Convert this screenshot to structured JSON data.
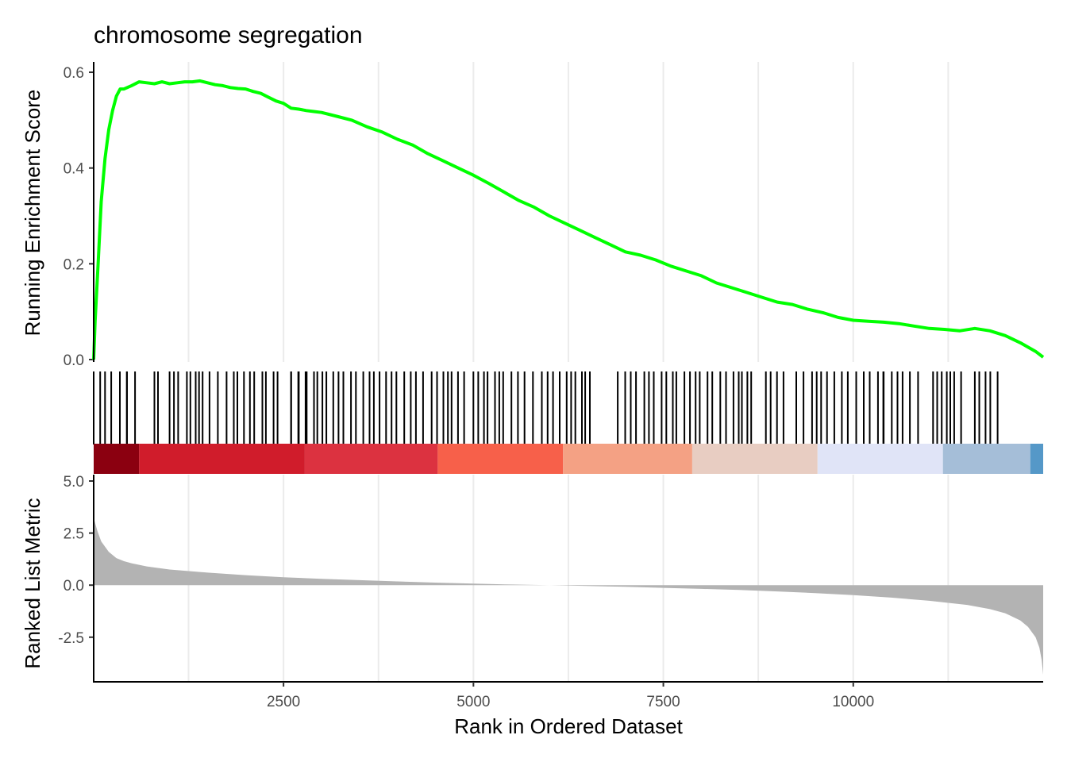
{
  "chart_data": {
    "type": "line",
    "title": "chromosome segregation",
    "xlabel": "Rank in Ordered Dataset",
    "xlim": [
      1,
      12500
    ],
    "x_ticks": [
      2500,
      5000,
      7500,
      10000
    ],
    "x_tick_labels": [
      "2500",
      "5000",
      "7500",
      "10000"
    ],
    "grid": "vertical",
    "line_color": "#00FF00",
    "panels": {
      "running_score": {
        "ylabel": "Running Enrichment Score",
        "ylim": [
          -0.005,
          0.61
        ],
        "y_ticks": [
          0.0,
          0.2,
          0.4,
          0.6
        ],
        "y_tick_labels": [
          "0.0",
          "0.2",
          "0.4",
          "0.6"
        ],
        "series": [
          {
            "x": [
              1,
              20,
              60,
              100,
              150,
              200,
              250,
              300,
              350,
              400,
              500,
              600,
              700,
              800,
              900,
              1000,
              1100,
              1200,
              1300,
              1400,
              1500,
              1600,
              1700,
              1800,
              1900,
              2000,
              2100,
              2200,
              2300,
              2400,
              2500,
              2600,
              2700,
              2800,
              2900,
              3000,
              3200,
              3400,
              3600,
              3800,
              4000,
              4200,
              4400,
              4600,
              4800,
              5000,
              5200,
              5400,
              5600,
              5800,
              6000,
              6200,
              6400,
              6600,
              6800,
              7000,
              7200,
              7400,
              7600,
              7800,
              8000,
              8200,
              8400,
              8600,
              8800,
              9000,
              9200,
              9400,
              9600,
              9800,
              10000,
              10200,
              10400,
              10600,
              10800,
              11000,
              11200,
              11400,
              11600,
              11800,
              12000,
              12200,
              12400,
              12500
            ],
            "y": [
              0.0,
              0.08,
              0.2,
              0.33,
              0.42,
              0.48,
              0.52,
              0.55,
              0.565,
              0.565,
              0.572,
              0.58,
              0.578,
              0.576,
              0.58,
              0.576,
              0.578,
              0.58,
              0.58,
              0.582,
              0.578,
              0.574,
              0.572,
              0.568,
              0.566,
              0.565,
              0.56,
              0.556,
              0.548,
              0.54,
              0.535,
              0.525,
              0.523,
              0.52,
              0.518,
              0.516,
              0.508,
              0.5,
              0.486,
              0.475,
              0.46,
              0.448,
              0.43,
              0.415,
              0.4,
              0.385,
              0.368,
              0.35,
              0.332,
              0.318,
              0.3,
              0.285,
              0.27,
              0.255,
              0.24,
              0.225,
              0.218,
              0.208,
              0.195,
              0.185,
              0.175,
              0.16,
              0.15,
              0.14,
              0.13,
              0.12,
              0.115,
              0.105,
              0.098,
              0.088,
              0.082,
              0.08,
              0.078,
              0.075,
              0.07,
              0.065,
              0.063,
              0.06,
              0.065,
              0.06,
              0.05,
              0.035,
              0.017,
              0.005
            ]
          }
        ]
      },
      "gene_hits": {
        "ranges": [
          [
            1,
            440
          ],
          [
            440,
            650
          ],
          [
            800,
            900
          ],
          [
            1000,
            1700
          ],
          [
            1750,
            2450
          ],
          [
            2600,
            2850
          ],
          [
            2600,
            3500
          ],
          [
            3550,
            3800
          ],
          [
            3850,
            4350
          ],
          [
            4450,
            4950
          ],
          [
            5000,
            5450
          ],
          [
            5500,
            5800
          ],
          [
            5900,
            6550
          ],
          [
            6900,
            7150
          ],
          [
            7250,
            7800
          ],
          [
            7850,
            8200
          ],
          [
            8250,
            8750
          ],
          [
            8850,
            9150
          ],
          [
            9250,
            9700
          ],
          [
            9750,
            10400
          ],
          [
            10400,
            10950
          ],
          [
            11050,
            11500
          ],
          [
            11600,
            11850
          ],
          [
            11900,
            11950
          ]
        ]
      },
      "color_bar": {
        "breaks": [
          1,
          600,
          2780,
          4530,
          6180,
          7880,
          9530,
          11180,
          12330,
          12500
        ],
        "colors": [
          "#8B0010",
          "#D01C2B",
          "#DC3240",
          "#F7604A",
          "#F4A184",
          "#E8CDC2",
          "#E0E4F7",
          "#A5BED8",
          "#5598C8",
          "#2F6FAE"
        ]
      },
      "ranked_metric": {
        "ylabel": "Ranked List Metric",
        "ylim": [
          -4.3,
          5.0
        ],
        "y_ticks": [
          -2.5,
          0.0,
          2.5,
          5.0
        ],
        "y_tick_labels": [
          "-2.5",
          "0.0",
          "2.5",
          "5.0"
        ],
        "fill": "#B3B3B3",
        "x": [
          1,
          10,
          50,
          100,
          200,
          300,
          400,
          500,
          700,
          1000,
          1500,
          2000,
          2500,
          3000,
          3500,
          4000,
          4500,
          5000,
          5500,
          6000,
          6500,
          7000,
          7500,
          8000,
          8500,
          9000,
          9500,
          10000,
          10500,
          11000,
          11500,
          11800,
          12000,
          12200,
          12300,
          12400,
          12450,
          12480,
          12500
        ],
        "values": [
          3.3,
          3.1,
          2.6,
          2.1,
          1.6,
          1.3,
          1.15,
          1.05,
          0.9,
          0.75,
          0.6,
          0.48,
          0.38,
          0.3,
          0.24,
          0.18,
          0.12,
          0.07,
          0.03,
          0.0,
          -0.04,
          -0.08,
          -0.13,
          -0.18,
          -0.23,
          -0.3,
          -0.38,
          -0.48,
          -0.6,
          -0.75,
          -0.95,
          -1.15,
          -1.35,
          -1.7,
          -2.0,
          -2.5,
          -3.0,
          -3.6,
          -4.3
        ]
      }
    }
  }
}
